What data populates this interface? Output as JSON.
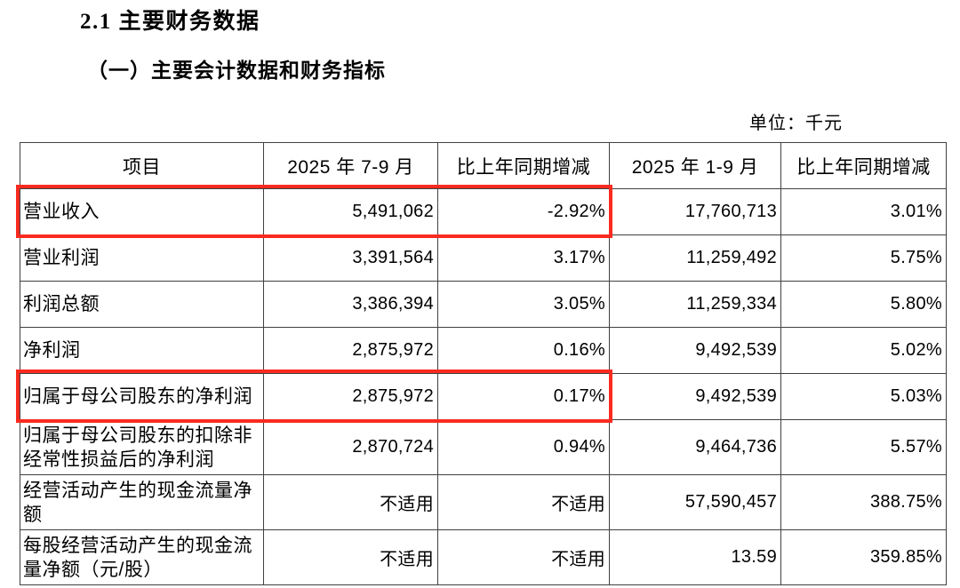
{
  "page": {
    "section_title": "2.1 主要财务数据",
    "subsection_title": "（一）主要会计数据和财务指标",
    "unit_note": "单位：千元"
  },
  "table": {
    "headers": [
      "项目",
      "2025 年 7-9 月",
      "比上年同期增减",
      "2025 年 1-9 月",
      "比上年同期增减"
    ],
    "rows": [
      {
        "label": "营业收入",
        "values": [
          "5,491,062",
          "-2.92%",
          "17,760,713",
          "3.01%"
        ],
        "highlighted": true
      },
      {
        "label": "营业利润",
        "values": [
          "3,391,564",
          "3.17%",
          "11,259,492",
          "5.75%"
        ],
        "highlighted": false
      },
      {
        "label": "利润总额",
        "values": [
          "3,386,394",
          "3.05%",
          "11,259,334",
          "5.80%"
        ],
        "highlighted": false
      },
      {
        "label": "净利润",
        "values": [
          "2,875,972",
          "0.16%",
          "9,492,539",
          "5.02%"
        ],
        "highlighted": false
      },
      {
        "label": "归属于母公司股东的净利润",
        "values": [
          "2,875,972",
          "0.17%",
          "9,492,539",
          "5.03%"
        ],
        "highlighted": true
      },
      {
        "label": "归属于母公司股东的扣除非经常性损益后的净利润",
        "values": [
          "2,870,724",
          "0.94%",
          "9,464,736",
          "5.57%"
        ],
        "highlighted": false
      },
      {
        "label": "经营活动产生的现金流量净额",
        "values": [
          "不适用",
          "不适用",
          "57,590,457",
          "388.75%"
        ],
        "highlighted": false
      },
      {
        "label": "每股经营活动产生的现金流量净额（元/股）",
        "values": [
          "不适用",
          "不适用",
          "13.59",
          "359.85%"
        ],
        "highlighted": false
      }
    ]
  },
  "colors": {
    "highlight_border": "#f92b20",
    "table_border": "#404040",
    "text": "#000000",
    "background": "#ffffff"
  }
}
